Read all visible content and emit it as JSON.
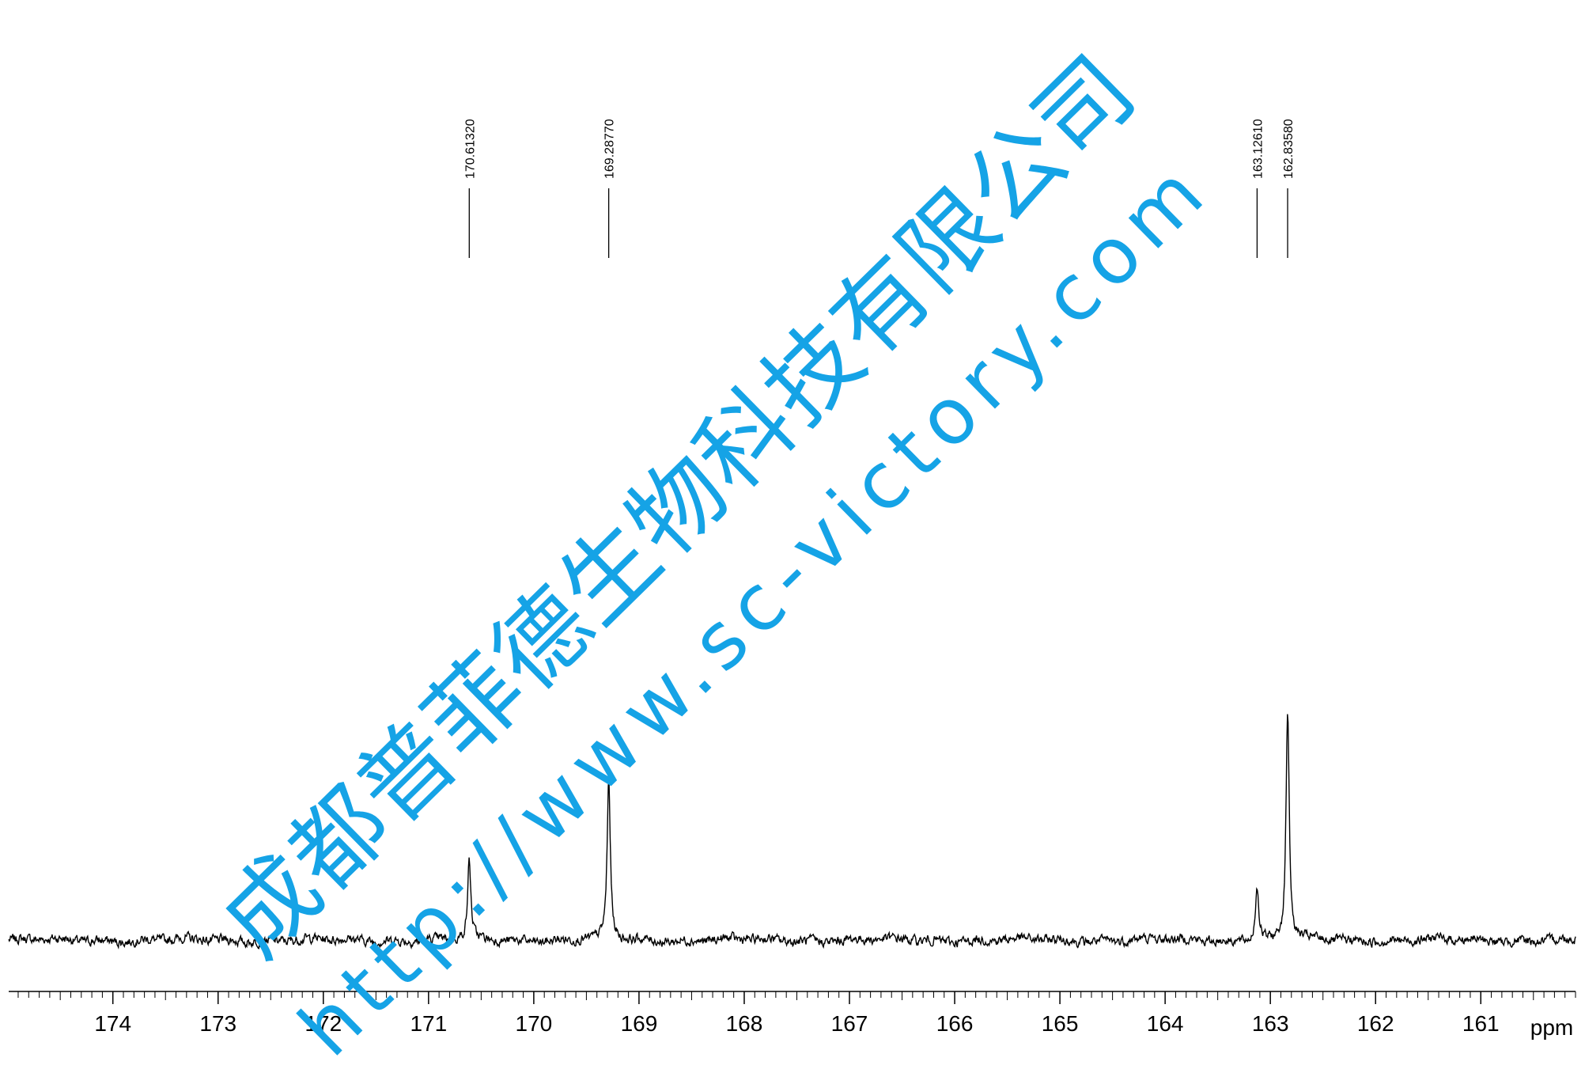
{
  "chart_data": {
    "type": "line",
    "title": "",
    "xlabel": "ppm",
    "ylabel": "",
    "x_direction": "reversed",
    "xlim": [
      174.99,
      160.1
    ],
    "x_ticks": [
      "174",
      "173",
      "172",
      "171",
      "170",
      "169",
      "168",
      "167",
      "166",
      "165",
      "164",
      "163",
      "162",
      "161"
    ],
    "peak_labels": [
      "170.61320",
      "169.28770",
      "163.12610",
      "162.83580"
    ],
    "peaks": [
      {
        "ppm": 170.6132,
        "height": 0.34
      },
      {
        "ppm": 169.2877,
        "height": 0.69
      },
      {
        "ppm": 163.1261,
        "height": 0.24
      },
      {
        "ppm": 162.8358,
        "height": 1.0
      }
    ],
    "grid": false,
    "legend": "none"
  },
  "watermark": {
    "company": "成都普菲德生物科技有限公司",
    "url": "http://www.sc-victory.com",
    "color": "#15a3e6"
  }
}
